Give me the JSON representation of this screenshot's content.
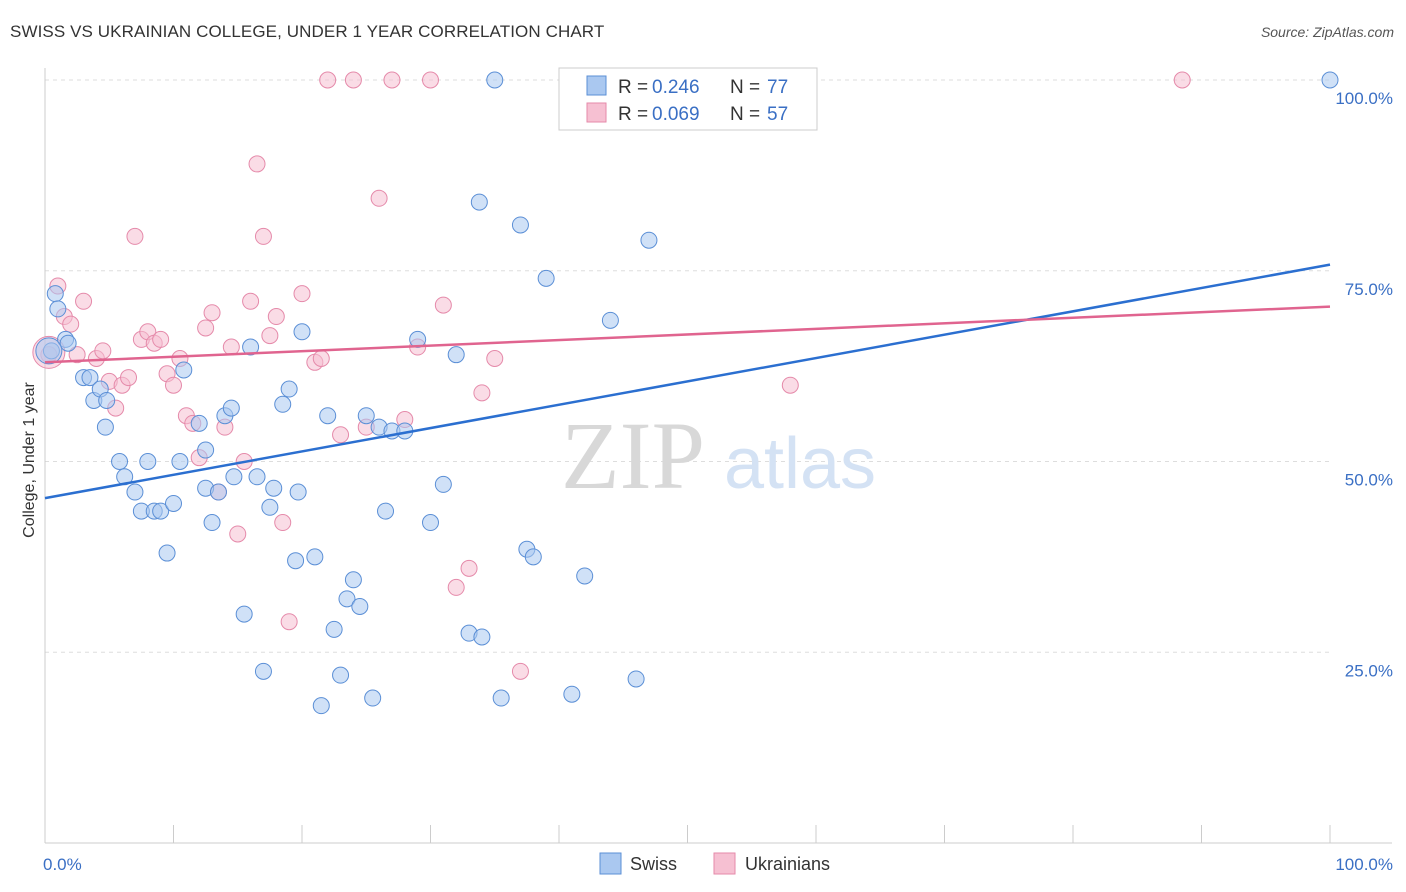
{
  "title": "SWISS VS UKRAINIAN COLLEGE, UNDER 1 YEAR CORRELATION CHART",
  "source": "Source: ZipAtlas.com",
  "watermark": {
    "zip": "ZIP",
    "atlas": "atlas"
  },
  "colors": {
    "swiss_fill": "#aac8f0",
    "swiss_stroke": "#5b8fd6",
    "swiss_line": "#2b6fd0",
    "ukr_fill": "#f6c0d2",
    "ukr_stroke": "#e58aaa",
    "ukr_line": "#e0648f",
    "axis_label": "#3a6fc4",
    "grid": "#dddddd"
  },
  "legend": {
    "rows": [
      {
        "r_label": "R = ",
        "r_value": "0.246",
        "n_label": "N = ",
        "n_value": "77"
      },
      {
        "r_label": "R = ",
        "r_value": "0.069",
        "n_label": "N = ",
        "n_value": "57"
      }
    ]
  },
  "chart_data": {
    "type": "scatter",
    "title": "SWISS VS UKRAINIAN COLLEGE, UNDER 1 YEAR CORRELATION CHART",
    "xlabel": "",
    "ylabel": "College, Under 1 year",
    "xlim": [
      0,
      100
    ],
    "ylim": [
      0,
      105
    ],
    "x_tick_labels": [
      "0.0%",
      "100.0%"
    ],
    "y_ticks": [
      25,
      50,
      75,
      100
    ],
    "y_tick_labels": [
      "25.0%",
      "50.0%",
      "75.0%",
      "100.0%"
    ],
    "grid": true,
    "legend_position": "bottom-center",
    "series": [
      {
        "name": "Swiss",
        "r": 0.246,
        "n": 77,
        "trend": {
          "x": [
            0,
            100
          ],
          "y": [
            45.2,
            75.8
          ]
        },
        "points": [
          [
            0.5,
            64.5
          ],
          [
            0.8,
            72
          ],
          [
            1,
            70
          ],
          [
            1.6,
            66
          ],
          [
            1.8,
            65.5
          ],
          [
            3,
            61
          ],
          [
            3.5,
            61
          ],
          [
            3.8,
            58
          ],
          [
            4.3,
            59.5
          ],
          [
            4.8,
            58
          ],
          [
            4.7,
            54.5
          ],
          [
            5.8,
            50
          ],
          [
            6.2,
            48
          ],
          [
            7,
            46
          ],
          [
            7.5,
            43.5
          ],
          [
            8,
            50
          ],
          [
            8.5,
            43.5
          ],
          [
            9,
            43.5
          ],
          [
            9.5,
            38
          ],
          [
            10,
            44.5
          ],
          [
            10.5,
            50
          ],
          [
            10.8,
            62
          ],
          [
            12.5,
            51.5
          ],
          [
            12,
            55
          ],
          [
            12.5,
            46.5
          ],
          [
            13,
            42
          ],
          [
            13.5,
            46
          ],
          [
            14,
            56
          ],
          [
            14.5,
            57
          ],
          [
            14.7,
            48
          ],
          [
            15.5,
            30
          ],
          [
            16,
            65
          ],
          [
            16.5,
            48
          ],
          [
            17,
            22.5
          ],
          [
            17.5,
            44
          ],
          [
            17.8,
            46.5
          ],
          [
            18.5,
            57.5
          ],
          [
            19,
            59.5
          ],
          [
            19.5,
            37
          ],
          [
            19.7,
            46
          ],
          [
            20,
            67
          ],
          [
            21,
            37.5
          ],
          [
            21.5,
            18
          ],
          [
            22,
            56
          ],
          [
            22.5,
            28
          ],
          [
            23,
            22
          ],
          [
            23.5,
            32
          ],
          [
            24,
            34.5
          ],
          [
            24.5,
            31
          ],
          [
            25,
            56
          ],
          [
            25.5,
            19
          ],
          [
            26,
            54.5
          ],
          [
            26.5,
            43.5
          ],
          [
            27,
            54
          ],
          [
            28,
            54
          ],
          [
            29,
            66
          ],
          [
            30,
            42
          ],
          [
            31,
            47
          ],
          [
            32,
            64
          ],
          [
            33,
            27.5
          ],
          [
            33.8,
            84
          ],
          [
            34,
            27
          ],
          [
            35,
            100
          ],
          [
            35.5,
            19
          ],
          [
            37,
            81
          ],
          [
            37.5,
            38.5
          ],
          [
            38,
            37.5
          ],
          [
            39,
            74
          ],
          [
            41,
            19.5
          ],
          [
            42,
            35
          ],
          [
            44,
            68.5
          ],
          [
            46,
            21.5
          ],
          [
            47,
            79
          ],
          [
            100,
            100
          ],
          [
            43,
            100
          ],
          [
            45,
            100
          ],
          [
            47,
            100
          ]
        ]
      },
      {
        "name": "Ukrainians",
        "r": 0.069,
        "n": 57,
        "trend": {
          "x": [
            0,
            100
          ],
          "y": [
            63.0,
            70.3
          ]
        },
        "points": [
          [
            0.3,
            64
          ],
          [
            1,
            73
          ],
          [
            1.5,
            69
          ],
          [
            2,
            68
          ],
          [
            2.5,
            64
          ],
          [
            3,
            71
          ],
          [
            4,
            63.5
          ],
          [
            4.5,
            64.5
          ],
          [
            5,
            60.5
          ],
          [
            5.5,
            57
          ],
          [
            6,
            60
          ],
          [
            6.5,
            61
          ],
          [
            7,
            79.5
          ],
          [
            7.5,
            66
          ],
          [
            8,
            67
          ],
          [
            8.5,
            65.5
          ],
          [
            9,
            66
          ],
          [
            9.5,
            61.5
          ],
          [
            10,
            60
          ],
          [
            10.5,
            63.5
          ],
          [
            11,
            56
          ],
          [
            11.5,
            55
          ],
          [
            12,
            50.5
          ],
          [
            12.5,
            67.5
          ],
          [
            13,
            69.5
          ],
          [
            13.5,
            46
          ],
          [
            14,
            54.5
          ],
          [
            14.5,
            65
          ],
          [
            15,
            40.5
          ],
          [
            15.5,
            50
          ],
          [
            16,
            71
          ],
          [
            16.5,
            89
          ],
          [
            17,
            79.5
          ],
          [
            17.5,
            66.5
          ],
          [
            18,
            69
          ],
          [
            18.5,
            42
          ],
          [
            19,
            29
          ],
          [
            20,
            72
          ],
          [
            21,
            63
          ],
          [
            21.5,
            63.5
          ],
          [
            22,
            100
          ],
          [
            23,
            53.5
          ],
          [
            24,
            100
          ],
          [
            25,
            54.5
          ],
          [
            26,
            84.5
          ],
          [
            27,
            100
          ],
          [
            28,
            55.5
          ],
          [
            29,
            65
          ],
          [
            30,
            100
          ],
          [
            31,
            70.5
          ],
          [
            32,
            33.5
          ],
          [
            33,
            36
          ],
          [
            34,
            59
          ],
          [
            35,
            63.5
          ],
          [
            37,
            22.5
          ],
          [
            58,
            60
          ],
          [
            88.5,
            100
          ]
        ]
      }
    ]
  }
}
